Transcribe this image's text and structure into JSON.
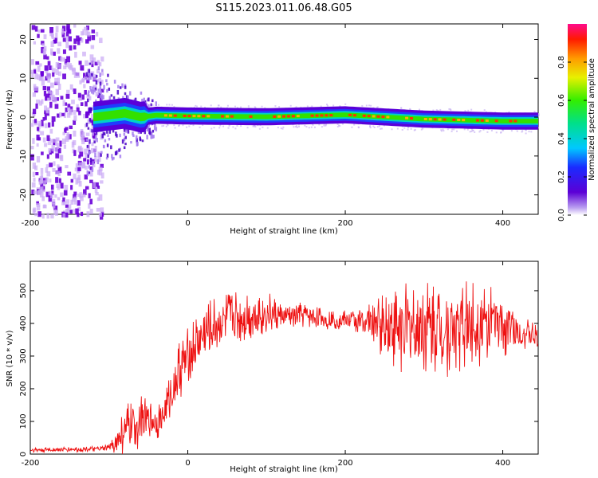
{
  "title": "S115.2023.011.06.48.G05",
  "colors": {
    "snr_line": "#ee1111",
    "axis": "#000000",
    "low_density": "#d9c6f5",
    "spectrum_base": "#6a00d8"
  },
  "chart_data": [
    {
      "type": "heatmap",
      "name": "spectrogram",
      "xlabel": "Height of straight line (km)",
      "ylabel": "Frequency (Hz)",
      "xlim": [
        -200,
        445
      ],
      "ylim": [
        -25,
        24
      ],
      "xticks": [
        -200,
        0,
        200,
        400
      ],
      "yticks": [
        -20,
        -10,
        0,
        10,
        20
      ],
      "ridge": {
        "x": [
          -120,
          -100,
          -80,
          -60,
          -40,
          0,
          100,
          200,
          300,
          400,
          445
        ],
        "frequency": [
          0,
          0.5,
          1,
          0,
          0.5,
          0.3,
          0.1,
          0.6,
          -0.5,
          -1,
          -1
        ]
      },
      "colorbar": {
        "label": "Normalized spectral amplitude",
        "range": [
          0,
          1
        ],
        "ticks": [
          0.0,
          0.2,
          0.4,
          0.6,
          0.8
        ],
        "tick_labels": [
          "0.0",
          "0.2",
          "0.4",
          "0.6",
          "0.8"
        ]
      }
    },
    {
      "type": "line",
      "name": "snr",
      "xlabel": "Height of straight line (km)",
      "ylabel": "SNR (10 * v/v)",
      "xlim": [
        -200,
        445
      ],
      "ylim": [
        0,
        590
      ],
      "xticks": [
        -200,
        0,
        200,
        400
      ],
      "yticks": [
        0,
        100,
        200,
        300,
        400,
        500
      ],
      "series": [
        {
          "name": "SNR",
          "x": [
            -200,
            -150,
            -110,
            -100,
            -90,
            -80,
            -60,
            -50,
            -40,
            -30,
            -20,
            -10,
            0,
            20,
            40,
            60,
            80,
            100,
            120,
            150,
            180,
            200,
            230,
            260,
            300,
            330,
            360,
            380,
            400,
            420,
            445
          ],
          "mean": [
            12,
            14,
            16,
            20,
            40,
            70,
            100,
            110,
            100,
            120,
            190,
            260,
            300,
            360,
            400,
            420,
            425,
            430,
            420,
            425,
            410,
            410,
            405,
            390,
            385,
            385,
            395,
            400,
            395,
            375,
            355
          ],
          "spread": [
            8,
            8,
            8,
            12,
            40,
            80,
            80,
            60,
            60,
            60,
            80,
            100,
            90,
            100,
            90,
            90,
            80,
            70,
            40,
            40,
            30,
            30,
            60,
            140,
            150,
            150,
            140,
            120,
            100,
            60,
            40
          ]
        }
      ]
    }
  ]
}
